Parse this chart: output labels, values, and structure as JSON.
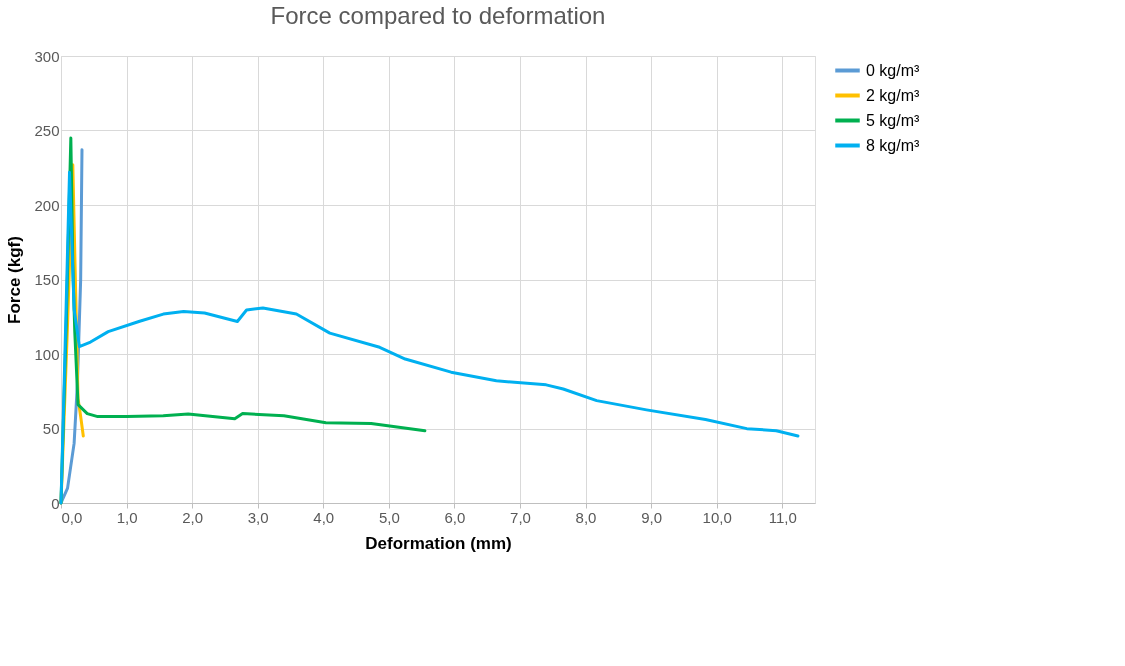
{
  "chart_data": {
    "type": "line",
    "title": "Force compared to deformation",
    "xlabel": "Deformation (mm)",
    "ylabel": "Force (kgf)",
    "xlim": [
      0,
      11.5
    ],
    "ylim": [
      0,
      300
    ],
    "xticks": [
      {
        "value": 0,
        "label": "0,0"
      },
      {
        "value": 1,
        "label": "1,0"
      },
      {
        "value": 2,
        "label": "2,0"
      },
      {
        "value": 3,
        "label": "3,0"
      },
      {
        "value": 4,
        "label": "4,0"
      },
      {
        "value": 5,
        "label": "5,0"
      },
      {
        "value": 6,
        "label": "6,0"
      },
      {
        "value": 7,
        "label": "7,0"
      },
      {
        "value": 8,
        "label": "8,0"
      },
      {
        "value": 9,
        "label": "9,0"
      },
      {
        "value": 10,
        "label": "10,0"
      },
      {
        "value": 11,
        "label": "11,0"
      }
    ],
    "yticks": [
      0,
      50,
      100,
      150,
      200,
      250,
      300
    ],
    "grid": true,
    "legend": "right",
    "line_style": "solid",
    "marker": "none",
    "series": [
      {
        "name": "0 kg/m³",
        "color": "#5b9bd5",
        "x": [
          0,
          0.1,
          0.2,
          0.25,
          0.3,
          0.32
        ],
        "values": [
          0,
          10,
          40,
          80,
          150,
          237
        ]
      },
      {
        "name": "2 kg/m³",
        "color": "#ffc000",
        "x": [
          0,
          0.1,
          0.18,
          0.26,
          0.3,
          0.34
        ],
        "values": [
          0,
          120,
          227,
          70,
          58,
          45
        ]
      },
      {
        "name": "5 kg/m³",
        "color": "#00b050",
        "x": [
          0,
          0.08,
          0.15,
          0.18,
          0.21,
          0.26,
          0.4,
          0.56,
          1.0,
          1.56,
          1.94,
          2.65,
          2.77,
          3.4,
          4.04,
          4.73,
          5.55
        ],
        "values": [
          0,
          120,
          245,
          160,
          115,
          66,
          60,
          58,
          58,
          58.6,
          59.7,
          56.6,
          60,
          58.6,
          53.8,
          53.3,
          48.5
        ]
      },
      {
        "name": "8 kg/m³",
        "color": "#00b0f0",
        "x": [
          0,
          0.06,
          0.13,
          0.2,
          0.28,
          0.45,
          0.72,
          1.2,
          1.56,
          1.87,
          2.19,
          2.69,
          2.83,
          3.08,
          3.59,
          4.1,
          4.86,
          5.25,
          5.95,
          6.64,
          7.4,
          7.66,
          8.17,
          8.93,
          9.83,
          10.46,
          10.91,
          11.24
        ],
        "values": [
          0,
          100,
          222,
          130,
          105,
          108,
          115,
          122,
          126.8,
          128.5,
          127.5,
          121.8,
          129.5,
          130.9,
          126.8,
          114,
          104.5,
          96.6,
          87.8,
          82,
          79.3,
          76.5,
          68.7,
          62.5,
          56,
          49.9,
          48.5,
          45
        ]
      }
    ]
  }
}
